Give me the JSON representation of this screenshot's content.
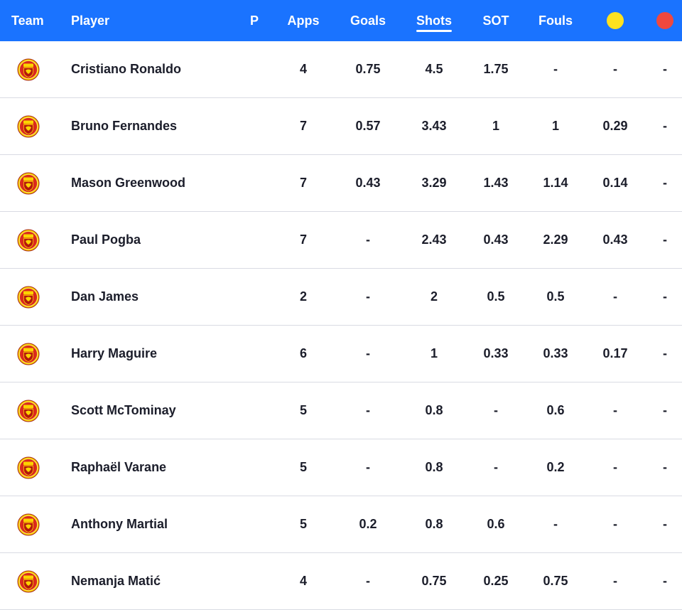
{
  "colors": {
    "header_bg": "#1a73ff",
    "yellow_card": "#ffe11f",
    "red_card": "#f0483e",
    "row_divider": "#d9dbe3"
  },
  "header": {
    "team": "Team",
    "player": "Player",
    "position": "P",
    "apps": "Apps",
    "goals": "Goals",
    "shots": "Shots",
    "sot": "SOT",
    "fouls": "Fouls",
    "yellow_icon": "yellow-card-icon",
    "red_icon": "red-card-icon",
    "active_sort": "shots"
  },
  "rows": [
    {
      "team_icon": "man-utd-crest-icon",
      "player": "Cristiano Ronaldo",
      "pos": "",
      "apps": "4",
      "goals": "0.75",
      "shots": "4.5",
      "sot": "1.75",
      "fouls": "-",
      "yellow": "-",
      "red": "-"
    },
    {
      "team_icon": "man-utd-crest-icon",
      "player": "Bruno Fernandes",
      "pos": "",
      "apps": "7",
      "goals": "0.57",
      "shots": "3.43",
      "sot": "1",
      "fouls": "1",
      "yellow": "0.29",
      "red": "-"
    },
    {
      "team_icon": "man-utd-crest-icon",
      "player": "Mason Greenwood",
      "pos": "",
      "apps": "7",
      "goals": "0.43",
      "shots": "3.29",
      "sot": "1.43",
      "fouls": "1.14",
      "yellow": "0.14",
      "red": "-"
    },
    {
      "team_icon": "man-utd-crest-icon",
      "player": "Paul Pogba",
      "pos": "",
      "apps": "7",
      "goals": "-",
      "shots": "2.43",
      "sot": "0.43",
      "fouls": "2.29",
      "yellow": "0.43",
      "red": "-"
    },
    {
      "team_icon": "man-utd-crest-icon",
      "player": "Dan James",
      "pos": "",
      "apps": "2",
      "goals": "-",
      "shots": "2",
      "sot": "0.5",
      "fouls": "0.5",
      "yellow": "-",
      "red": "-"
    },
    {
      "team_icon": "man-utd-crest-icon",
      "player": "Harry Maguire",
      "pos": "",
      "apps": "6",
      "goals": "-",
      "shots": "1",
      "sot": "0.33",
      "fouls": "0.33",
      "yellow": "0.17",
      "red": "-"
    },
    {
      "team_icon": "man-utd-crest-icon",
      "player": "Scott McTominay",
      "pos": "",
      "apps": "5",
      "goals": "-",
      "shots": "0.8",
      "sot": "-",
      "fouls": "0.6",
      "yellow": "-",
      "red": "-"
    },
    {
      "team_icon": "man-utd-crest-icon",
      "player": "Raphaël Varane",
      "pos": "",
      "apps": "5",
      "goals": "-",
      "shots": "0.8",
      "sot": "-",
      "fouls": "0.2",
      "yellow": "-",
      "red": "-"
    },
    {
      "team_icon": "man-utd-crest-icon",
      "player": "Anthony Martial",
      "pos": "",
      "apps": "5",
      "goals": "0.2",
      "shots": "0.8",
      "sot": "0.6",
      "fouls": "-",
      "yellow": "-",
      "red": "-"
    },
    {
      "team_icon": "man-utd-crest-icon",
      "player": "Nemanja Matić",
      "pos": "",
      "apps": "4",
      "goals": "-",
      "shots": "0.75",
      "sot": "0.25",
      "fouls": "0.75",
      "yellow": "-",
      "red": "-"
    }
  ]
}
